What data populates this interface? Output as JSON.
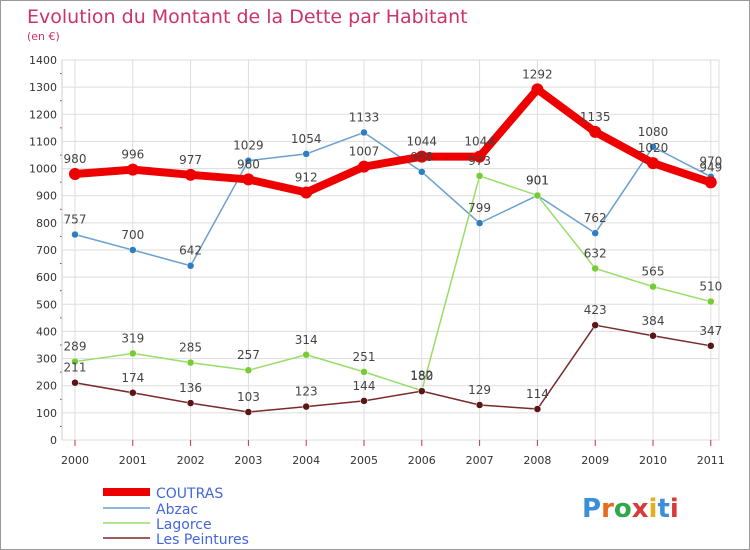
{
  "chart_data": {
    "type": "line",
    "title": "Evolution du Montant de la Dette par Habitant",
    "subtitle": "(en €)",
    "xlabel": "",
    "ylabel": "",
    "x": [
      "2000",
      "2001",
      "2002",
      "2003",
      "2004",
      "2005",
      "2006",
      "2007",
      "2008",
      "2009",
      "2010",
      "2011"
    ],
    "ylim": [
      0,
      1400
    ],
    "yticks": [
      "0",
      "100",
      "200",
      "300",
      "400",
      "500",
      "600",
      "700",
      "800",
      "900",
      "1000",
      "1100",
      "1200",
      "1300",
      "1400"
    ],
    "grid": true,
    "legend_position": "bottom-left",
    "series": [
      {
        "name": "COUTRAS",
        "color": "#ee0000",
        "point_color": "#ee0000",
        "values": [
          980,
          996,
          977,
          960,
          912,
          1007,
          1044,
          1044,
          1292,
          1135,
          1020,
          949
        ],
        "labels": [
          "980",
          "996",
          "977",
          "960",
          "912",
          "1007",
          "1044",
          "1044",
          "1292",
          "1135",
          "1020",
          "949"
        ]
      },
      {
        "name": "Abzac",
        "color": "#6a9fd0",
        "point_color": "#2f7ec0",
        "values": [
          757,
          700,
          642,
          1029,
          1054,
          1133,
          988,
          799,
          901,
          762,
          1080,
          970
        ],
        "labels": [
          "757",
          "700",
          "642",
          "1029",
          "1054",
          "1133",
          "988",
          "799",
          "901",
          "762",
          "1080",
          "970"
        ]
      },
      {
        "name": "Lagorce",
        "color": "#99dd66",
        "point_color": "#77cc33",
        "values": [
          289,
          319,
          285,
          257,
          314,
          251,
          182,
          973,
          901,
          632,
          565,
          510
        ],
        "labels": [
          "289",
          "319",
          "285",
          "257",
          "314",
          "251",
          "182",
          "973",
          "901",
          "632",
          "565",
          "510"
        ]
      },
      {
        "name": "Les Peintures",
        "color": "#7a2a2a",
        "point_color": "#5a1515",
        "values": [
          211,
          174,
          136,
          103,
          123,
          144,
          180,
          129,
          114,
          423,
          384,
          347
        ],
        "labels": [
          "211",
          "174",
          "136",
          "103",
          "123",
          "144",
          "180",
          "129",
          "114",
          "423",
          "384",
          "347"
        ]
      }
    ]
  },
  "legend": {
    "items": [
      {
        "label": "COUTRAS"
      },
      {
        "label": "Abzac"
      },
      {
        "label": "Lagorce"
      },
      {
        "label": "Les Peintures"
      }
    ]
  },
  "brand": {
    "logo_text": "Proxiti"
  }
}
